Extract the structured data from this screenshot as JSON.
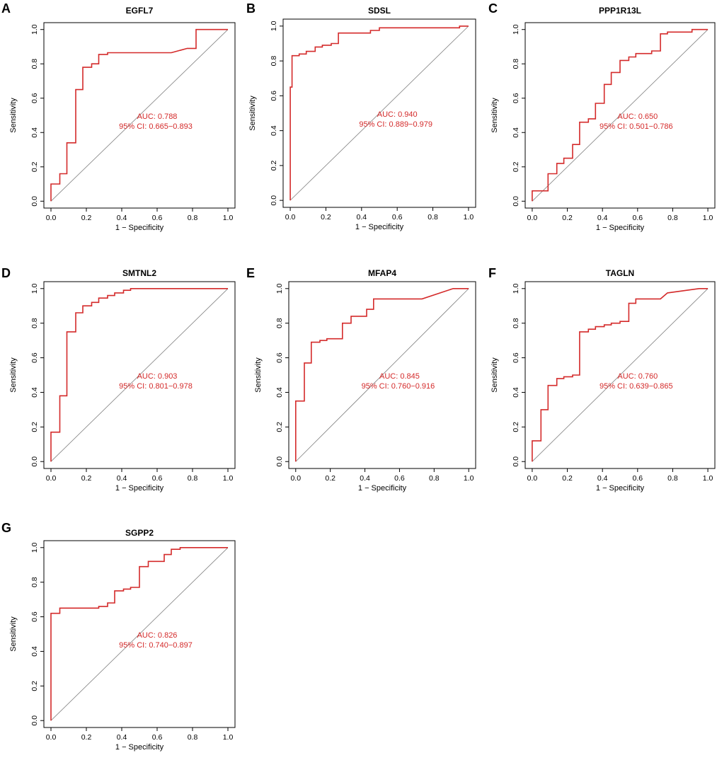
{
  "colors": {
    "curve": "#d42a2a",
    "text_annotation": "#d42a2a",
    "diagonal": "#808080",
    "axis": "#000000"
  },
  "chart_data": [
    {
      "type": "line",
      "panel": "A",
      "title": "EGFL7",
      "xlabel": "1 − Specificity",
      "ylabel": "Sensitivity",
      "xlim": [
        0,
        1
      ],
      "ylim": [
        0,
        1
      ],
      "xticks": [
        "0.0",
        "0.2",
        "0.4",
        "0.6",
        "0.8",
        "1.0"
      ],
      "yticks": [
        "0.0",
        "0.2",
        "0.4",
        "0.6",
        "0.8",
        "1.0"
      ],
      "auc_text": "AUC: 0.788",
      "ci_text": "95% CI: 0.665−0.893",
      "x": [
        0,
        0,
        0.05,
        0.05,
        0.09,
        0.09,
        0.14,
        0.14,
        0.18,
        0.18,
        0.23,
        0.23,
        0.27,
        0.27,
        0.32,
        0.32,
        0.68,
        0.77,
        0.82,
        0.82,
        1
      ],
      "y": [
        0,
        0.1,
        0.1,
        0.16,
        0.16,
        0.34,
        0.34,
        0.65,
        0.65,
        0.78,
        0.78,
        0.8,
        0.8,
        0.855,
        0.855,
        0.865,
        0.865,
        0.89,
        0.89,
        1,
        1
      ]
    },
    {
      "type": "line",
      "panel": "B",
      "title": "SDSL",
      "xlabel": "1 − Specificity",
      "ylabel": "Sensitivity",
      "xlim": [
        0,
        1
      ],
      "ylim": [
        0,
        1
      ],
      "xticks": [
        "0.0",
        "0.2",
        "0.4",
        "0.6",
        "0.8",
        "1.0"
      ],
      "yticks": [
        "0.0",
        "0.2",
        "0.4",
        "0.6",
        "0.8",
        "1.0"
      ],
      "auc_text": "AUC: 0.940",
      "ci_text": "95% CI: 0.889−0.979",
      "x": [
        0,
        0,
        0.01,
        0.01,
        0.05,
        0.05,
        0.09,
        0.09,
        0.14,
        0.14,
        0.18,
        0.18,
        0.23,
        0.23,
        0.27,
        0.27,
        0.45,
        0.45,
        0.5,
        0.5,
        0.95,
        0.95,
        1
      ],
      "y": [
        0,
        0.65,
        0.65,
        0.83,
        0.83,
        0.84,
        0.84,
        0.855,
        0.855,
        0.88,
        0.88,
        0.89,
        0.89,
        0.9,
        0.9,
        0.96,
        0.96,
        0.975,
        0.975,
        0.99,
        0.99,
        1,
        1
      ]
    },
    {
      "type": "line",
      "panel": "C",
      "title": "PPP1R13L",
      "xlabel": "1 − Specificity",
      "ylabel": "Sensitivity",
      "xlim": [
        0,
        1
      ],
      "ylim": [
        0,
        1
      ],
      "xticks": [
        "0.0",
        "0.2",
        "0.4",
        "0.6",
        "0.8",
        "1.0"
      ],
      "yticks": [
        "0.0",
        "0.2",
        "0.4",
        "0.6",
        "0.8",
        "1.0"
      ],
      "auc_text": "AUC: 0.650",
      "ci_text": "95% CI: 0.501−0.786",
      "x": [
        0,
        0,
        0.09,
        0.09,
        0.14,
        0.14,
        0.18,
        0.18,
        0.23,
        0.23,
        0.27,
        0.27,
        0.32,
        0.32,
        0.36,
        0.36,
        0.41,
        0.41,
        0.45,
        0.45,
        0.5,
        0.5,
        0.55,
        0.55,
        0.59,
        0.59,
        0.68,
        0.68,
        0.73,
        0.73,
        0.77,
        0.77,
        0.91,
        0.91,
        1
      ],
      "y": [
        0,
        0.06,
        0.06,
        0.16,
        0.16,
        0.22,
        0.22,
        0.25,
        0.25,
        0.33,
        0.33,
        0.46,
        0.46,
        0.48,
        0.48,
        0.57,
        0.57,
        0.68,
        0.68,
        0.75,
        0.75,
        0.82,
        0.82,
        0.84,
        0.84,
        0.86,
        0.86,
        0.875,
        0.875,
        0.975,
        0.975,
        0.985,
        0.985,
        1,
        1
      ]
    },
    {
      "type": "line",
      "panel": "D",
      "title": "SMTNL2",
      "xlabel": "1 − Specificity",
      "ylabel": "Sensitivity",
      "xlim": [
        0,
        1
      ],
      "ylim": [
        0,
        1
      ],
      "xticks": [
        "0.0",
        "0.2",
        "0.4",
        "0.6",
        "0.8",
        "1.0"
      ],
      "yticks": [
        "0.0",
        "0.2",
        "0.4",
        "0.6",
        "0.8",
        "1.0"
      ],
      "auc_text": "AUC: 0.903",
      "ci_text": "95% CI: 0.801−0.978",
      "x": [
        0,
        0,
        0.05,
        0.05,
        0.09,
        0.09,
        0.14,
        0.14,
        0.18,
        0.18,
        0.23,
        0.23,
        0.27,
        0.27,
        0.32,
        0.32,
        0.36,
        0.36,
        0.41,
        0.41,
        0.45,
        0.45,
        1
      ],
      "y": [
        0,
        0.17,
        0.17,
        0.38,
        0.38,
        0.75,
        0.75,
        0.86,
        0.86,
        0.9,
        0.9,
        0.92,
        0.92,
        0.945,
        0.945,
        0.96,
        0.96,
        0.975,
        0.975,
        0.99,
        0.99,
        1,
        1
      ]
    },
    {
      "type": "line",
      "panel": "E",
      "title": "MFAP4",
      "xlabel": "1 − Specificity",
      "ylabel": "Sensitivity",
      "xlim": [
        0,
        1
      ],
      "ylim": [
        0,
        1
      ],
      "xticks": [
        "0.0",
        "0.2",
        "0.4",
        "0.6",
        "0.8",
        "1.0"
      ],
      "yticks": [
        "0.0",
        "0.2",
        "0.4",
        "0.6",
        "0.8",
        "1.0"
      ],
      "auc_text": "AUC: 0.845",
      "ci_text": "95% CI: 0.760−0.916",
      "x": [
        0,
        0,
        0.05,
        0.05,
        0.09,
        0.09,
        0.14,
        0.14,
        0.18,
        0.18,
        0.27,
        0.27,
        0.32,
        0.32,
        0.41,
        0.41,
        0.45,
        0.45,
        0.73,
        0.91,
        1
      ],
      "y": [
        0,
        0.35,
        0.35,
        0.57,
        0.57,
        0.69,
        0.69,
        0.7,
        0.7,
        0.71,
        0.71,
        0.8,
        0.8,
        0.84,
        0.84,
        0.88,
        0.88,
        0.94,
        0.94,
        1,
        1
      ]
    },
    {
      "type": "line",
      "panel": "F",
      "title": "TAGLN",
      "xlabel": "1 − Specificity",
      "ylabel": "Sensitivity",
      "xlim": [
        0,
        1
      ],
      "ylim": [
        0,
        1
      ],
      "xticks": [
        "0.0",
        "0.2",
        "0.4",
        "0.6",
        "0.8",
        "1.0"
      ],
      "yticks": [
        "0.0",
        "0.2",
        "0.4",
        "0.6",
        "0.8",
        "1.0"
      ],
      "auc_text": "AUC: 0.760",
      "ci_text": "95% CI: 0.639−0.865",
      "x": [
        0,
        0,
        0.05,
        0.05,
        0.09,
        0.09,
        0.14,
        0.14,
        0.18,
        0.18,
        0.23,
        0.23,
        0.27,
        0.27,
        0.32,
        0.32,
        0.36,
        0.36,
        0.41,
        0.41,
        0.45,
        0.45,
        0.5,
        0.5,
        0.55,
        0.55,
        0.59,
        0.59,
        0.73,
        0.77,
        0.95,
        1
      ],
      "y": [
        0,
        0.12,
        0.12,
        0.3,
        0.3,
        0.44,
        0.44,
        0.48,
        0.48,
        0.49,
        0.49,
        0.5,
        0.5,
        0.75,
        0.75,
        0.765,
        0.765,
        0.78,
        0.78,
        0.79,
        0.79,
        0.8,
        0.8,
        0.81,
        0.81,
        0.915,
        0.915,
        0.94,
        0.94,
        0.975,
        1,
        1
      ]
    },
    {
      "type": "line",
      "panel": "G",
      "title": "SGPP2",
      "xlabel": "1 − Specificity",
      "ylabel": "Sensitivity",
      "xlim": [
        0,
        1
      ],
      "ylim": [
        0,
        1
      ],
      "xticks": [
        "0.0",
        "0.2",
        "0.4",
        "0.6",
        "0.8",
        "1.0"
      ],
      "yticks": [
        "0.0",
        "0.2",
        "0.4",
        "0.6",
        "0.8",
        "1.0"
      ],
      "auc_text": "AUC: 0.826",
      "ci_text": "95% CI: 0.740−0.897",
      "x": [
        0,
        0,
        0.05,
        0.05,
        0.27,
        0.27,
        0.32,
        0.32,
        0.36,
        0.36,
        0.41,
        0.41,
        0.45,
        0.45,
        0.5,
        0.5,
        0.55,
        0.55,
        0.64,
        0.64,
        0.68,
        0.68,
        0.73,
        0.73,
        1
      ],
      "y": [
        0,
        0.62,
        0.62,
        0.65,
        0.65,
        0.66,
        0.66,
        0.68,
        0.68,
        0.75,
        0.75,
        0.76,
        0.76,
        0.77,
        0.77,
        0.89,
        0.89,
        0.92,
        0.92,
        0.96,
        0.96,
        0.99,
        0.99,
        1,
        1
      ]
    }
  ]
}
